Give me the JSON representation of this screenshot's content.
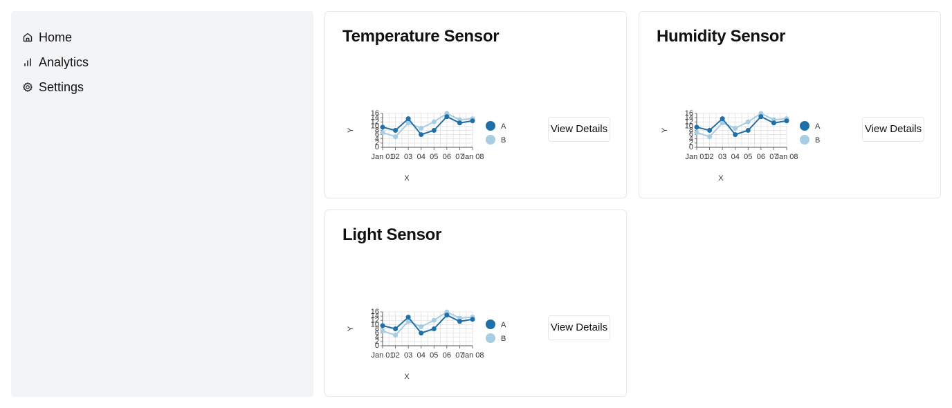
{
  "sidebar": {
    "items": [
      {
        "label": "Home",
        "icon": "home-icon"
      },
      {
        "label": "Analytics",
        "icon": "bar-chart-icon"
      },
      {
        "label": "Settings",
        "icon": "gear-icon"
      }
    ]
  },
  "cards": [
    {
      "title": "Temperature Sensor",
      "button_label": "View Details"
    },
    {
      "title": "Humidity Sensor",
      "button_label": "View Details"
    },
    {
      "title": "Light Sensor",
      "button_label": "View Details"
    }
  ],
  "colors": {
    "series_a": "#1f6fa8",
    "series_b": "#a6cde2",
    "grid": "#e0e0e0"
  },
  "chart_data": [
    {
      "type": "line",
      "x": [
        "Jan 01",
        "Jan 02",
        "Jan 03",
        "Jan 04",
        "Jan 05",
        "Jan 06",
        "Jan 07",
        "Jan 08"
      ],
      "x_tick_labels": [
        "Jan 01",
        "02",
        "03",
        "04",
        "05",
        "06",
        "07",
        "Jan 08"
      ],
      "series": [
        {
          "name": "A",
          "values": [
            9.5,
            8,
            13.5,
            6,
            8,
            14.5,
            11.5,
            12.5
          ]
        },
        {
          "name": "B",
          "values": [
            7,
            5,
            11.5,
            9,
            12,
            16,
            13,
            13.5
          ]
        }
      ],
      "xlabel": "X",
      "ylabel": "Y",
      "ylim": [
        0,
        16
      ],
      "y_ticks": [
        "0",
        "2",
        "4",
        "6",
        "8",
        "10",
        "12",
        "14",
        "16"
      ],
      "grid": true,
      "legend": "right"
    },
    {
      "type": "line",
      "x": [
        "Jan 01",
        "Jan 02",
        "Jan 03",
        "Jan 04",
        "Jan 05",
        "Jan 06",
        "Jan 07",
        "Jan 08"
      ],
      "x_tick_labels": [
        "Jan 01",
        "02",
        "03",
        "04",
        "05",
        "06",
        "07",
        "Jan 08"
      ],
      "series": [
        {
          "name": "A",
          "values": [
            9.5,
            8,
            13.5,
            6,
            8,
            14.5,
            11.5,
            12.5
          ]
        },
        {
          "name": "B",
          "values": [
            7,
            5,
            11.5,
            9,
            12,
            16,
            13,
            13.5
          ]
        }
      ],
      "xlabel": "X",
      "ylabel": "Y",
      "ylim": [
        0,
        16
      ],
      "y_ticks": [
        "0",
        "2",
        "4",
        "6",
        "8",
        "10",
        "12",
        "14",
        "16"
      ],
      "grid": true,
      "legend": "right"
    },
    {
      "type": "line",
      "x": [
        "Jan 01",
        "Jan 02",
        "Jan 03",
        "Jan 04",
        "Jan 05",
        "Jan 06",
        "Jan 07",
        "Jan 08"
      ],
      "x_tick_labels": [
        "Jan 01",
        "02",
        "03",
        "04",
        "05",
        "06",
        "07",
        "Jan 08"
      ],
      "series": [
        {
          "name": "A",
          "values": [
            9.5,
            8,
            13.5,
            6,
            8,
            14.5,
            11.5,
            12.5
          ]
        },
        {
          "name": "B",
          "values": [
            7,
            5,
            11.5,
            9,
            12,
            16,
            13,
            13.5
          ]
        }
      ],
      "xlabel": "X",
      "ylabel": "Y",
      "ylim": [
        0,
        16
      ],
      "y_ticks": [
        "0",
        "2",
        "4",
        "6",
        "8",
        "10",
        "12",
        "14",
        "16"
      ],
      "grid": true,
      "legend": "right"
    }
  ]
}
